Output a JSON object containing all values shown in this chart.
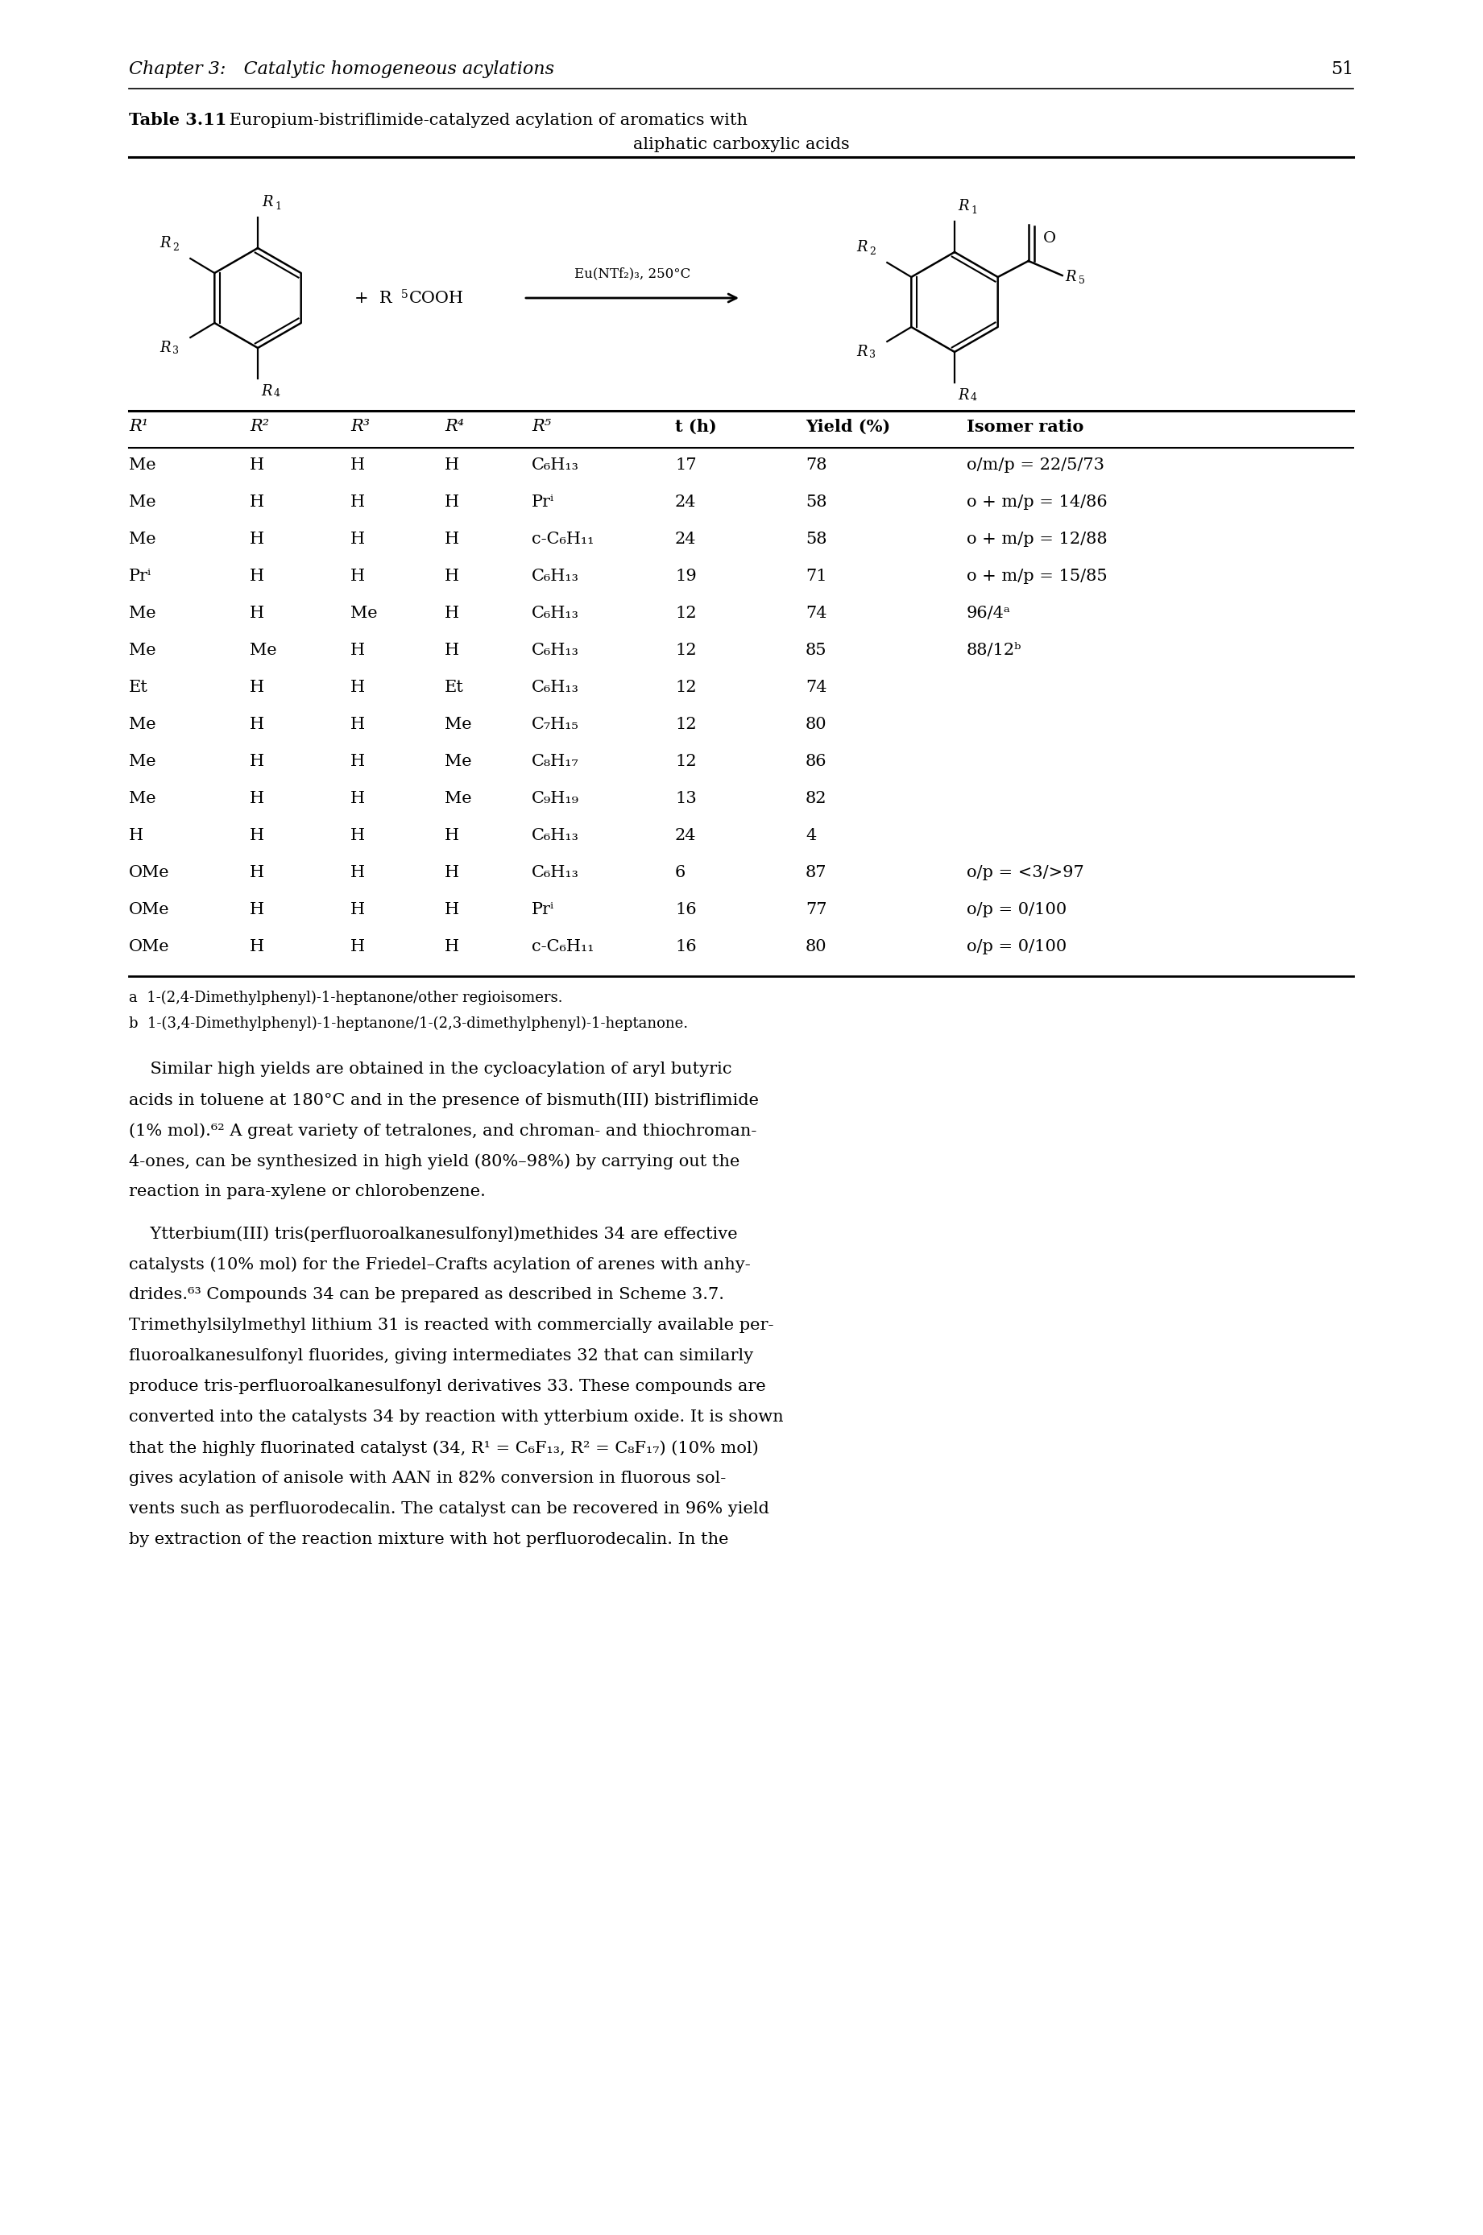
{
  "page_number": "51",
  "chapter_header_italic": "Chapter 3:   Catalytic homogeneous acylations",
  "table_title_bold": "Table 3.11",
  "table_title_rest": " Europium-bistriflimide-catalyzed acylation of aromatics with",
  "table_title_line2": "aliphatic carboxylic acids",
  "col_headers": [
    "R¹",
    "R²",
    "R³",
    "R⁴",
    "R⁵",
    "t (h)",
    "Yield (%)",
    "Isomer ratio"
  ],
  "col_headers_italic": [
    true,
    true,
    true,
    true,
    true,
    false,
    false,
    false
  ],
  "table_data": [
    [
      "Me",
      "H",
      "H",
      "H",
      "C₆H₁₃",
      "17",
      "78",
      "o/m/p = 22/5/73"
    ],
    [
      "Me",
      "H",
      "H",
      "H",
      "Prⁱ",
      "24",
      "58",
      "o + m/p = 14/86"
    ],
    [
      "Me",
      "H",
      "H",
      "H",
      "c-C₆H₁₁",
      "24",
      "58",
      "o + m/p = 12/88"
    ],
    [
      "Prⁱ",
      "H",
      "H",
      "H",
      "C₆H₁₃",
      "19",
      "71",
      "o + m/p = 15/85"
    ],
    [
      "Me",
      "H",
      "Me",
      "H",
      "C₆H₁₃",
      "12",
      "74",
      "96/4ᵃ"
    ],
    [
      "Me",
      "Me",
      "H",
      "H",
      "C₆H₁₃",
      "12",
      "85",
      "88/12ᵇ"
    ],
    [
      "Et",
      "H",
      "H",
      "Et",
      "C₆H₁₃",
      "12",
      "74",
      ""
    ],
    [
      "Me",
      "H",
      "H",
      "Me",
      "C₇H₁₅",
      "12",
      "80",
      ""
    ],
    [
      "Me",
      "H",
      "H",
      "Me",
      "C₈H₁₇",
      "12",
      "86",
      ""
    ],
    [
      "Me",
      "H",
      "H",
      "Me",
      "C₉H₁₉",
      "13",
      "82",
      ""
    ],
    [
      "H",
      "H",
      "H",
      "H",
      "C₆H₁₃",
      "24",
      "4",
      ""
    ],
    [
      "OMe",
      "H",
      "H",
      "H",
      "C₆H₁₃",
      "6",
      "87",
      "o/p = <3/>97"
    ],
    [
      "OMe",
      "H",
      "H",
      "H",
      "Prⁱ",
      "16",
      "77",
      "o/p = 0/100"
    ],
    [
      "OMe",
      "H",
      "H",
      "H",
      "c-C₆H₁₁",
      "16",
      "80",
      "o/p = 0/100"
    ]
  ],
  "footnote_a": "a  1-(2,4-Dimethylphenyl)-1-heptanone/other regioisomers.",
  "footnote_b": "b  1-(3,4-Dimethylphenyl)-1-heptanone/1-(2,3-dimethylphenyl)-1-heptanone.",
  "body_para1": [
    "    Similar high yields are obtained in the cycloacylation of aryl butyric",
    "acids in toluene at 180°C and in the presence of bismuth(III) bistriflimide",
    "(1% mol).⁶² A great variety of tetralones, and chroman- and thiochroman-",
    "4-ones, can be synthesized in high yield (80%–98%) by carrying out the",
    "reaction in para-xylene or chlorobenzene."
  ],
  "body_para2": [
    "    Ytterbium(III) tris(perfluoroalkanesulfonyl)methides 34 are effective",
    "catalysts (10% mol) for the Friedel–Crafts acylation of arenes with anhy-",
    "drides.⁶³ Compounds 34 can be prepared as described in Scheme 3.7.",
    "Trimethylsilylmethyl lithium 31 is reacted with commercially available per-",
    "fluoroalkanesulfonyl fluorides, giving intermediates 32 that can similarly",
    "produce tris-perfluoroalkanesulfonyl derivatives 33. These compounds are",
    "converted into the catalysts 34 by reaction with ytterbium oxide. It is shown",
    "that the highly fluorinated catalyst (34, R¹ = C₆F₁₃, R² = C₈F₁₇) (10% mol)",
    "gives acylation of anisole with AAN in 82% conversion in fluorous sol-",
    "vents such as perfluorodecalin. The catalyst can be recovered in 96% yield",
    "by extraction of the reaction mixture with hot perfluorodecalin. In the"
  ]
}
